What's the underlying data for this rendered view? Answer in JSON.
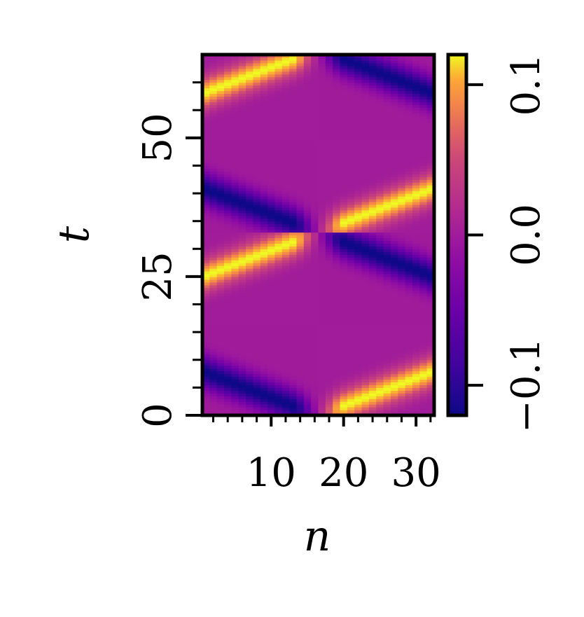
{
  "chart_data": {
    "type": "heatmap",
    "xlabel": "n",
    "ylabel": "t",
    "xlim": [
      1,
      32
    ],
    "ylim": [
      0,
      65
    ],
    "x_ticks": [
      10,
      20,
      30
    ],
    "x_tick_labels": [
      "10",
      "20",
      "30"
    ],
    "x_minor_ticks": [
      2,
      4,
      6,
      8,
      12,
      14,
      16,
      18,
      22,
      24,
      26,
      28,
      32
    ],
    "y_ticks": [
      0,
      25,
      50
    ],
    "y_tick_labels": [
      "0",
      "25",
      "50"
    ],
    "y_minor_ticks": [
      5,
      10,
      15,
      20,
      30,
      35,
      40,
      45,
      55,
      60
    ],
    "grid": false,
    "colormap": "plasma",
    "colorbar": {
      "vmin": -0.12,
      "vmax": 0.12,
      "ticks": [
        -0.1,
        0.0,
        0.1
      ],
      "tick_labels": [
        "−0.1",
        "0.0",
        "0.1"
      ]
    },
    "field": {
      "description_of_pattern": "alternating diagonal stripes",
      "period_t": 33,
      "amplitude": 0.12,
      "node_n": 16.5
    }
  }
}
